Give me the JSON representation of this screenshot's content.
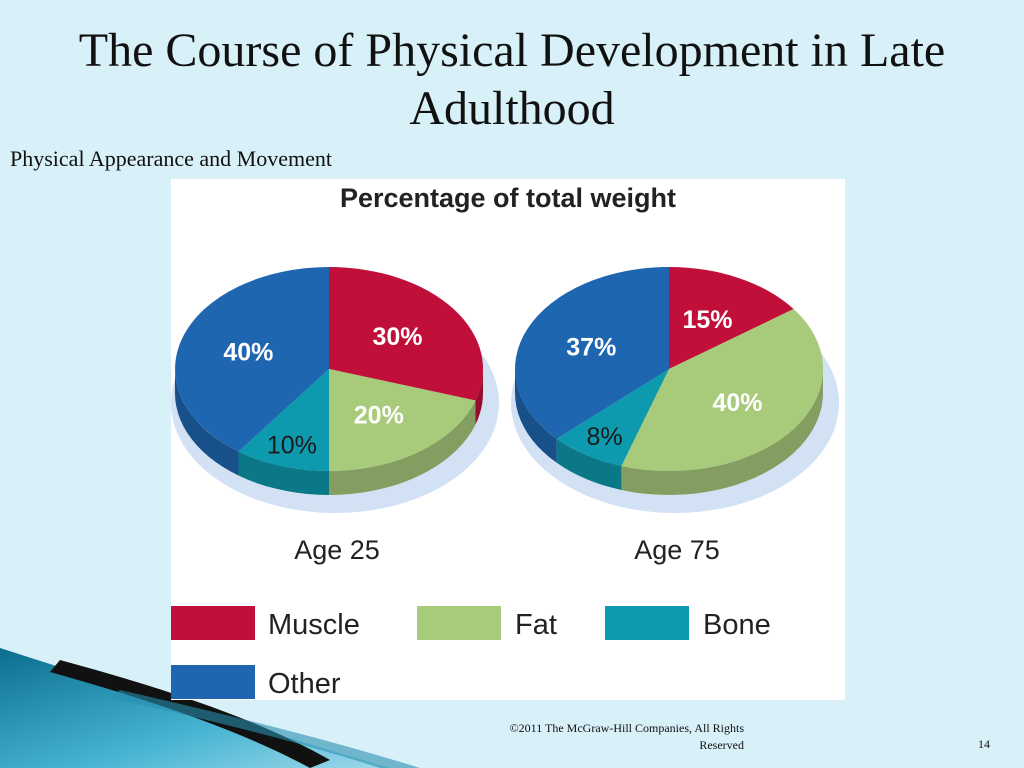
{
  "slide": {
    "title": "The Course of Physical Development in Late Adulthood",
    "subtitle": "Physical Appearance and Movement",
    "footer": "©2011 The McGraw-Hill Companies, All Rights Reserved",
    "page_number": "14"
  },
  "chart_data": {
    "type": "pie",
    "title": "Percentage of total weight",
    "categories": [
      "Muscle",
      "Fat",
      "Bone",
      "Other"
    ],
    "colors": {
      "Muscle": "#c0103a",
      "Fat": "#a8cb7b",
      "Bone": "#0e9aae",
      "Other": "#1f66b0"
    },
    "legend": "bottom",
    "pies": [
      {
        "name": "Age 25",
        "values": [
          30,
          20,
          10,
          40
        ],
        "labels": [
          "30%",
          "20%",
          "10%",
          "40%"
        ]
      },
      {
        "name": "Age 75",
        "values": [
          15,
          40,
          8,
          37
        ],
        "labels": [
          "15%",
          "40%",
          "8%",
          "37%"
        ]
      }
    ]
  }
}
